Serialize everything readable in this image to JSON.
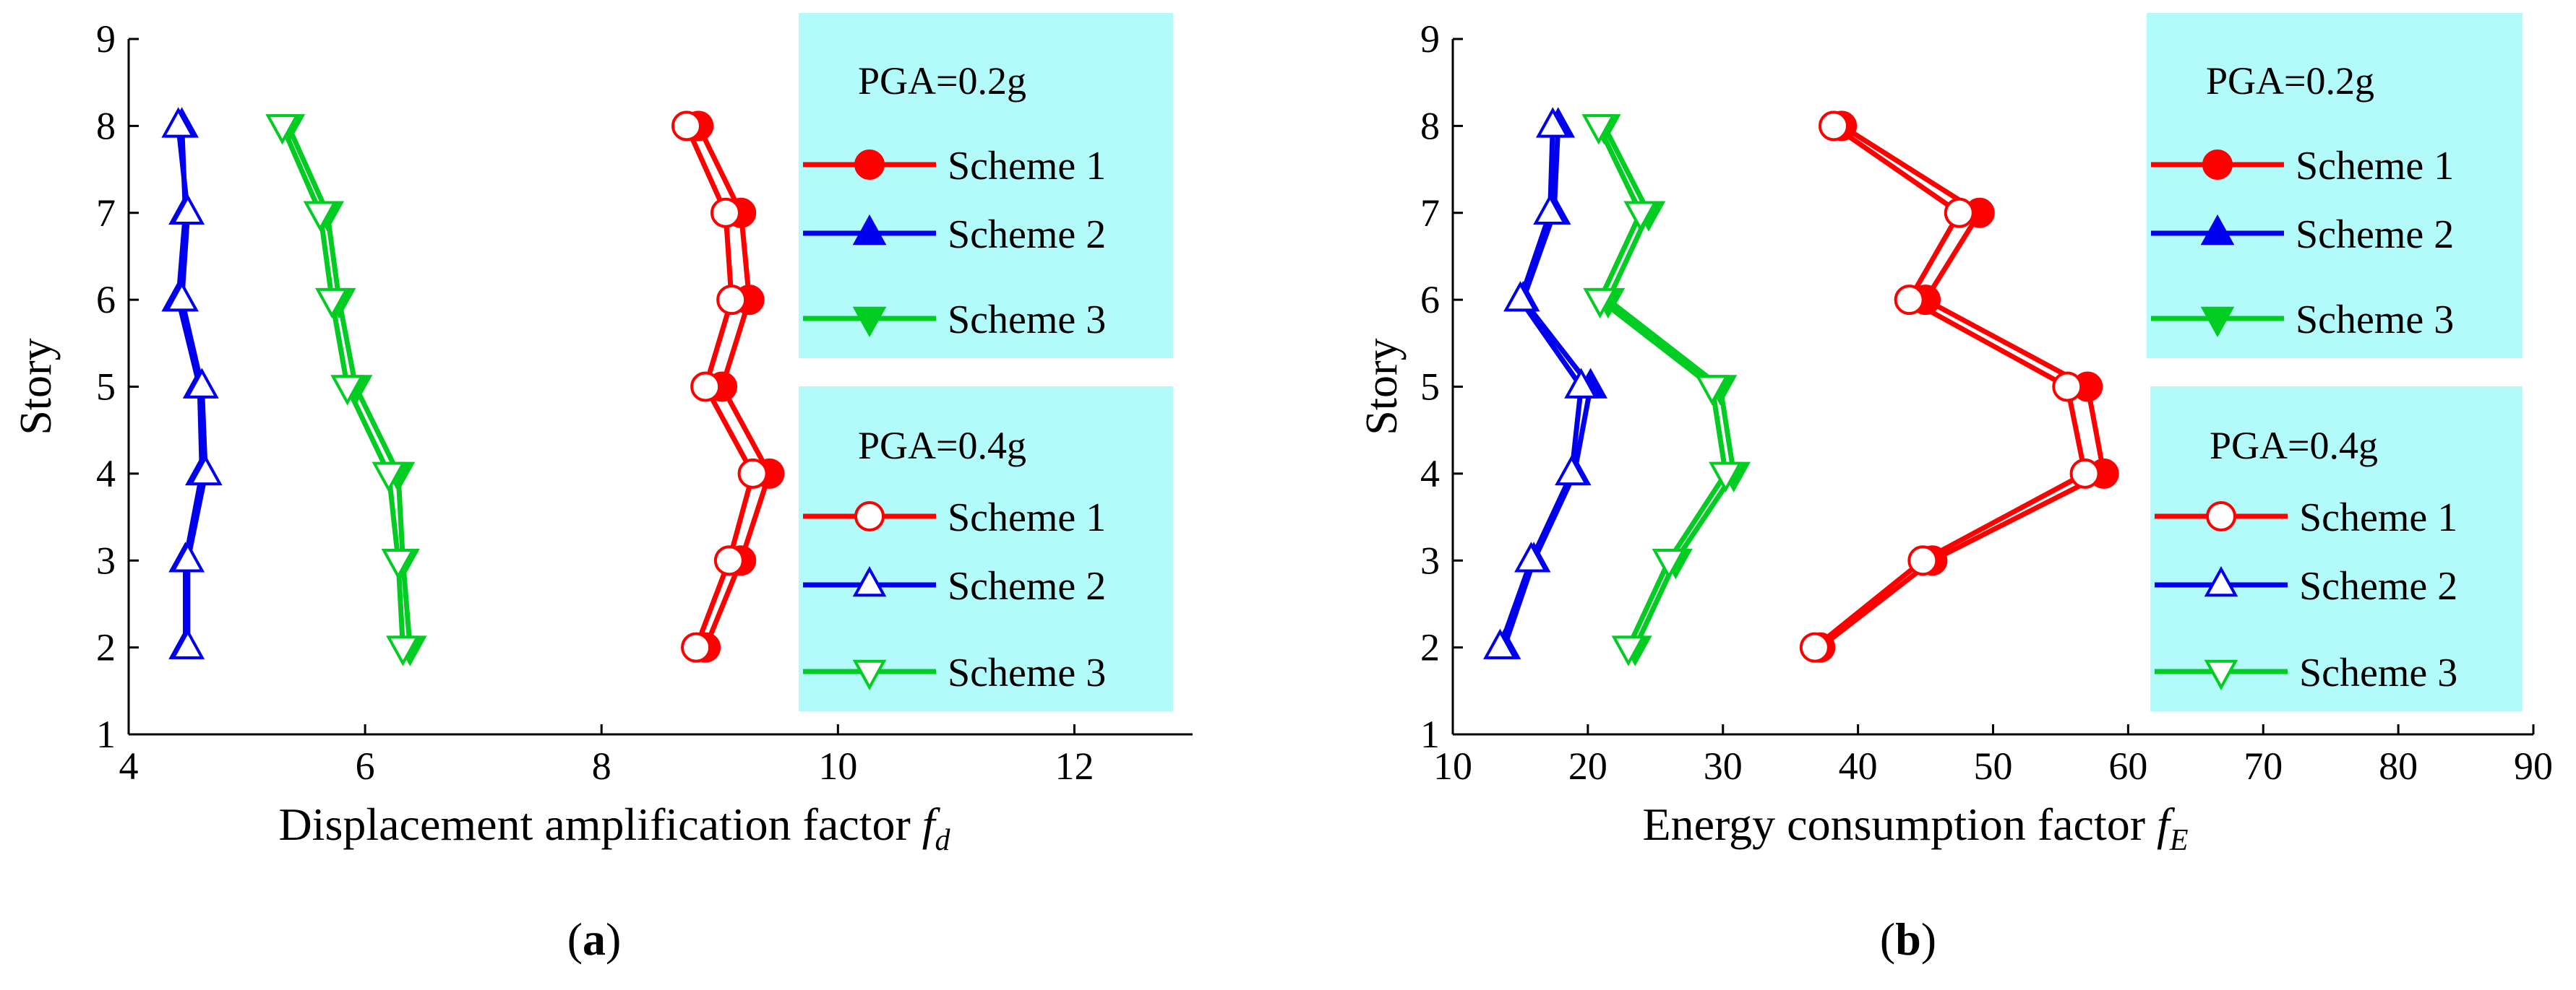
{
  "colors": {
    "scheme1": "#ff0000",
    "scheme2": "#0000ee",
    "scheme3": "#00cc22",
    "legend_bg": "#b3fafa",
    "axis": "#000000"
  },
  "chart_data": [
    {
      "type": "line",
      "panel_label": "a",
      "xlabel_text": "Displacement amplification factor ",
      "xlabel_symbol": "f",
      "xlabel_sub": "d",
      "ylabel": "Story",
      "xlim": [
        4,
        13
      ],
      "ylim": [
        1,
        9
      ],
      "xticks": [
        "4",
        "6",
        "8",
        "10",
        "12"
      ],
      "yticks": [
        "1",
        "2",
        "3",
        "4",
        "5",
        "6",
        "7",
        "8",
        "9"
      ],
      "legend_groups": [
        {
          "title": "PGA=0.2g",
          "entries": [
            "Scheme 1",
            "Scheme 2",
            "Scheme 3"
          ]
        },
        {
          "title": "PGA=0.4g",
          "entries": [
            "Scheme 1",
            "Scheme 2",
            "Scheme 3"
          ]
        }
      ],
      "series": [
        {
          "name": "Scheme 1",
          "pga": "0.2g",
          "marker": "circle",
          "filled": true,
          "x": [
            8.88,
            9.18,
            9.42,
            9.02,
            9.25,
            9.18,
            8.82
          ],
          "y": [
            2,
            3,
            4,
            5,
            6,
            7,
            8
          ]
        },
        {
          "name": "Scheme 2",
          "pga": "0.2g",
          "marker": "triangle-up",
          "filled": true,
          "x": [
            4.48,
            4.48,
            4.62,
            4.6,
            4.42,
            4.48,
            4.45
          ],
          "y": [
            2,
            3,
            4,
            5,
            6,
            7,
            8
          ]
        },
        {
          "name": "Scheme 3",
          "pga": "0.2g",
          "marker": "triangle-down",
          "filled": true,
          "x": [
            6.38,
            6.32,
            6.28,
            5.92,
            5.78,
            5.68,
            5.35
          ],
          "y": [
            2,
            3,
            4,
            5,
            6,
            7,
            8
          ]
        },
        {
          "name": "Scheme 1",
          "pga": "0.4g",
          "marker": "circle",
          "filled": false,
          "x": [
            8.8,
            9.08,
            9.28,
            8.88,
            9.1,
            9.05,
            8.72
          ],
          "y": [
            2,
            3,
            4,
            5,
            6,
            7,
            8
          ]
        },
        {
          "name": "Scheme 2",
          "pga": "0.4g",
          "marker": "triangle-up",
          "filled": false,
          "x": [
            4.5,
            4.5,
            4.65,
            4.62,
            4.45,
            4.5,
            4.42
          ],
          "y": [
            2,
            3,
            4,
            5,
            6,
            7,
            8
          ]
        },
        {
          "name": "Scheme 3",
          "pga": "0.4g",
          "marker": "triangle-down",
          "filled": false,
          "x": [
            6.32,
            6.28,
            6.2,
            5.85,
            5.72,
            5.62,
            5.3
          ],
          "y": [
            2,
            3,
            4,
            5,
            6,
            7,
            8
          ]
        }
      ]
    },
    {
      "type": "line",
      "panel_label": "b",
      "xlabel_text": "Energy consumption factor ",
      "xlabel_symbol": "f",
      "xlabel_sub": "E",
      "ylabel": "Story",
      "xlim": [
        10,
        90
      ],
      "ylim": [
        1,
        9
      ],
      "xticks": [
        "10",
        "20",
        "30",
        "40",
        "50",
        "60",
        "70",
        "80",
        "90"
      ],
      "yticks": [
        "1",
        "2",
        "3",
        "4",
        "5",
        "6",
        "7",
        "8",
        "9"
      ],
      "legend_groups": [
        {
          "title": "PGA=0.2g",
          "entries": [
            "Scheme 1",
            "Scheme 2",
            "Scheme 3"
          ]
        },
        {
          "title": "PGA=0.4g",
          "entries": [
            "Scheme 1",
            "Scheme 2",
            "Scheme 3"
          ]
        }
      ],
      "series": [
        {
          "name": "Scheme 1",
          "pga": "0.2g",
          "marker": "circle",
          "filled": true,
          "x": [
            37.2,
            45.5,
            58.2,
            57.0,
            45.0,
            49.0,
            38.8
          ],
          "y": [
            2,
            3,
            4,
            5,
            6,
            7,
            8
          ]
        },
        {
          "name": "Scheme 2",
          "pga": "0.2g",
          "marker": "triangle-up",
          "filled": true,
          "x": [
            13.8,
            16.0,
            19.0,
            20.2,
            15.2,
            17.5,
            17.8
          ],
          "y": [
            2,
            3,
            4,
            5,
            6,
            7,
            8
          ]
        },
        {
          "name": "Scheme 3",
          "pga": "0.2g",
          "marker": "triangle-down",
          "filled": true,
          "x": [
            23.5,
            26.5,
            30.8,
            29.8,
            21.5,
            24.5,
            21.2
          ],
          "y": [
            2,
            3,
            4,
            5,
            6,
            7,
            8
          ]
        },
        {
          "name": "Scheme 1",
          "pga": "0.4g",
          "marker": "circle",
          "filled": false,
          "x": [
            36.8,
            44.8,
            56.8,
            55.5,
            43.8,
            47.5,
            38.2
          ],
          "y": [
            2,
            3,
            4,
            5,
            6,
            7,
            8
          ]
        },
        {
          "name": "Scheme 2",
          "pga": "0.4g",
          "marker": "triangle-up",
          "filled": false,
          "x": [
            13.5,
            15.8,
            18.8,
            19.5,
            15.0,
            17.2,
            17.4
          ],
          "y": [
            2,
            3,
            4,
            5,
            6,
            7,
            8
          ]
        },
        {
          "name": "Scheme 3",
          "pga": "0.4g",
          "marker": "triangle-down",
          "filled": false,
          "x": [
            23.0,
            26.0,
            30.2,
            29.2,
            20.9,
            23.9,
            20.8
          ],
          "y": [
            2,
            3,
            4,
            5,
            6,
            7,
            8
          ]
        }
      ]
    }
  ]
}
